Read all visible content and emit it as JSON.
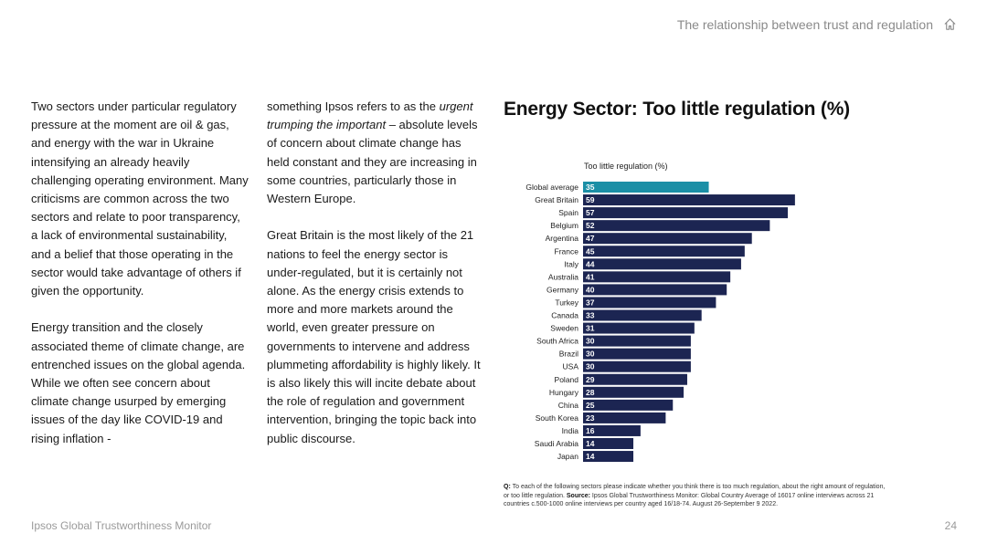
{
  "header": {
    "section_title": "The relationship between trust and regulation",
    "home_icon": "home-icon"
  },
  "body": {
    "col1": {
      "p1": "Two sectors under particular regulatory pressure at the moment are oil & gas, and energy with the war in Ukraine intensifying an already heavily challenging operating environment. Many criticisms are common across the two sectors and relate to poor transparency, a lack of environmental sustainability, and a belief that those operating in the sector would take advantage of others if given the opportunity.",
      "p2": "Energy transition and the closely associated theme of climate change, are entrenched issues on the global agenda. While we often see concern about climate change usurped by emerging issues of the day like COVID-19 and rising inflation -"
    },
    "col2": {
      "p1_start": "something Ipsos refers to as the ",
      "p1_italic": "urgent trumping the important",
      "p1_end": " – absolute levels of concern about climate change has held constant and they are increasing in some countries, particularly those in Western Europe.",
      "p2": "Great Britain is the most likely of the 21 nations to feel the energy sector is under-regulated, but it is certainly not alone. As the energy crisis extends to more and more markets around the world, even greater pressure on governments to intervene and address plummeting affordability is highly likely. It is also likely this will incite debate about the role of regulation and government intervention, bringing the topic back into public discourse."
    }
  },
  "chart_title": "Energy Sector: Too little regulation (%)",
  "chart_data": {
    "type": "bar",
    "orientation": "horizontal",
    "title": "Too little regulation (%)",
    "categories": [
      "Global average",
      "Great Britain",
      "Spain",
      "Belgium",
      "Argentina",
      "France",
      "Italy",
      "Australia",
      "Germany",
      "Turkey",
      "Canada",
      "Sweden",
      "South Africa",
      "Brazil",
      "USA",
      "Poland",
      "Hungary",
      "China",
      "South Korea",
      "India",
      "Saudi Arabia",
      "Japan"
    ],
    "values": [
      35,
      59,
      57,
      52,
      47,
      45,
      44,
      41,
      40,
      37,
      33,
      31,
      30,
      30,
      30,
      29,
      28,
      25,
      23,
      16,
      14,
      14
    ],
    "xlim": [
      0,
      60
    ],
    "highlight_index": 0,
    "colors": {
      "highlight": "#1b8fa6",
      "bar": "#1c2552",
      "label": "#ffffff"
    }
  },
  "footnote": {
    "q_label": "Q:",
    "q_text": " To each of the following sectors please indicate whether you think there is too much regulation, about the right amount of regulation, or too little regulation. ",
    "source_label": "Source:",
    "source_text": " Ipsos Global Trustworthiness Monitor: Global Country Average of 16017 online interviews across 21 countries c.500-1000 online interviews per country aged 16/18-74. August 26-September 9 2022."
  },
  "footer": {
    "left": "Ipsos Global Trustworthiness Monitor",
    "page": "24"
  }
}
